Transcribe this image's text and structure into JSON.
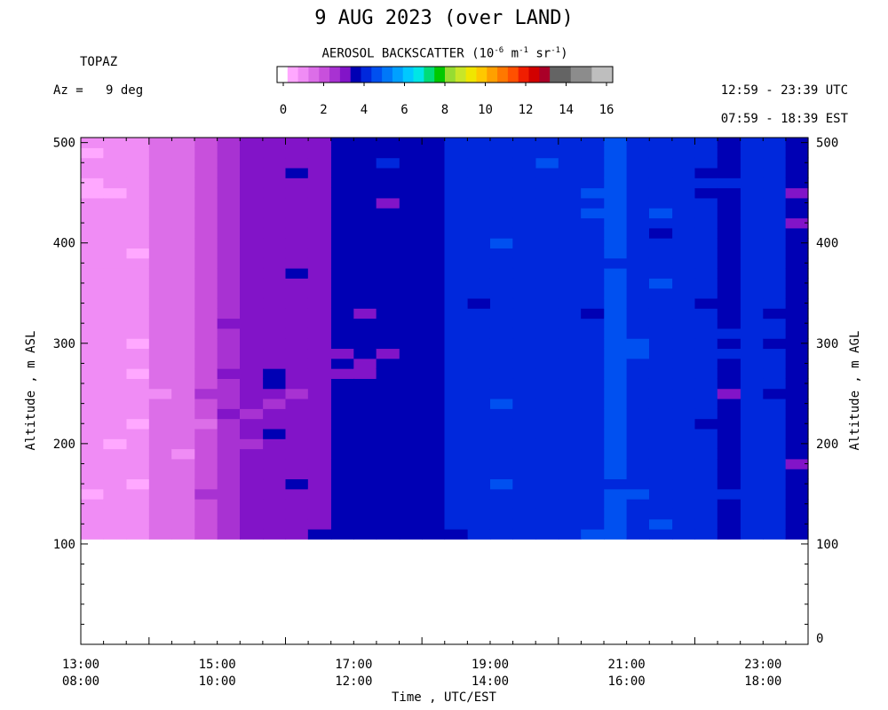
{
  "header": {
    "title": "9 AUG 2023 (over LAND)",
    "instrument": "TOPAZ",
    "azimuth": "Az =   9 deg",
    "utc_range": "12:59 - 23:39 UTC",
    "est_range": "07:59 - 18:39 EST"
  },
  "colorbar": {
    "label_main": "AEROSOL BACKSCATTER (10",
    "exp1": "-6",
    "unit_m": " m",
    "exp2": "-1",
    "unit_sr": " sr",
    "exp3": "-1",
    "close": ")",
    "ticks": [
      "0",
      "2",
      "4",
      "6",
      "8",
      "10",
      "12",
      "14",
      "16"
    ],
    "colors": [
      "#ffffff",
      "#ffa8ff",
      "#f08cf5",
      "#dc6ee8",
      "#c850dc",
      "#a832d2",
      "#8214c8",
      "#0000b4",
      "#0028dc",
      "#0050f0",
      "#0078f8",
      "#00a0ff",
      "#00c8ff",
      "#00e6e6",
      "#00dc78",
      "#00c800",
      "#96dc32",
      "#c8e628",
      "#f0e600",
      "#ffc800",
      "#ffa000",
      "#ff7800",
      "#ff5000",
      "#f01e00",
      "#d20000",
      "#aa0028",
      "#646464",
      "#646464",
      "#8c8c8c",
      "#8c8c8c",
      "#bebebe",
      "#bebebe"
    ]
  },
  "axes": {
    "xlabel": "Time , UTC/EST",
    "ylabel_left": "Altitude , m ASL",
    "ylabel_right": "Altitude , m AGL"
  },
  "chart_data": {
    "type": "heatmap",
    "title": "9 AUG 2023 (over LAND)",
    "variable": "AEROSOL BACKSCATTER (10^-6 m^-1 sr^-1)",
    "color_scale_range": [
      0,
      16
    ],
    "x_axis": {
      "label": "Time , UTC/EST",
      "range_utc_hours": [
        13.0,
        23.66
      ],
      "tick_labels_utc": [
        "13:00",
        "15:00",
        "17:00",
        "19:00",
        "21:00",
        "23:00"
      ],
      "tick_labels_est": [
        "08:00",
        "10:00",
        "12:00",
        "14:00",
        "16:00",
        "18:00"
      ]
    },
    "y_axis_left": {
      "label": "Altitude , m ASL",
      "ticks": [
        100,
        200,
        300,
        400,
        500
      ],
      "range": [
        0,
        505
      ]
    },
    "y_axis_right": {
      "label": "Altitude , m AGL",
      "ticks": [
        0,
        100,
        200,
        300,
        400,
        500
      ]
    },
    "data_altitude_range_m_asl": [
      105,
      505
    ],
    "time_columns_utc_start": [
      13.0,
      13.33,
      13.67,
      14.0,
      14.33,
      14.67,
      15.0,
      15.33,
      15.67,
      16.0,
      16.33,
      16.67,
      17.0,
      17.33,
      17.67,
      18.0,
      18.33,
      18.67,
      19.0,
      19.33,
      19.67,
      20.0,
      20.33,
      20.67,
      21.0,
      21.33,
      21.67,
      22.0,
      22.33,
      22.67,
      23.0,
      23.33
    ],
    "column_backscatter_values": [
      1.0,
      1.0,
      1.0,
      1.5,
      1.5,
      2.3,
      2.9,
      3.1,
      3.4,
      3.4,
      3.4,
      3.6,
      3.6,
      3.6,
      3.8,
      3.9,
      4.0,
      4.1,
      4.3,
      4.3,
      4.4,
      4.4,
      4.4,
      4.5,
      4.3,
      4.3,
      4.3,
      4.0,
      3.9,
      4.0,
      4.1,
      3.5
    ]
  }
}
